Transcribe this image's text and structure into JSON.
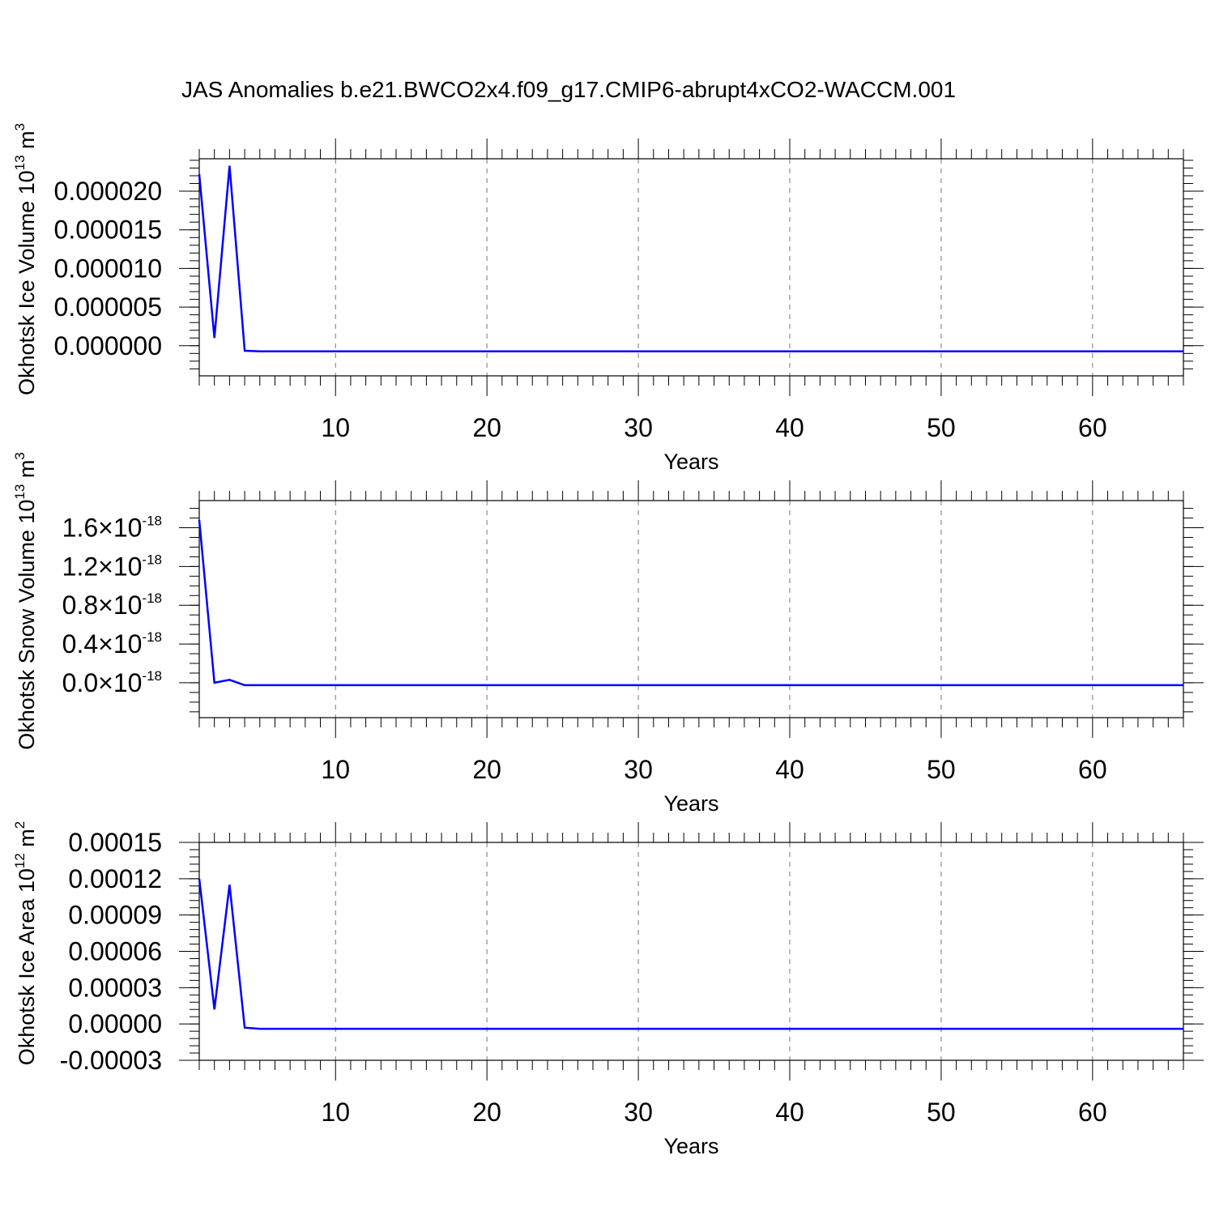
{
  "title": "JAS Anomalies b.e21.BWCO2x4.f09_g17.CMIP6-abrupt4xCO2-WACCM.001",
  "chart_data": [
    {
      "type": "line",
      "xlabel": "Years",
      "ylabel": {
        "text": "Okhotsk Ice Volume 10",
        "exp": "13",
        "unit": " m",
        "unit_exp": "3"
      },
      "xlim": [
        1,
        66
      ],
      "ylim": [
        -3.9e-06,
        2.42e-05
      ],
      "x_ticks": [
        10,
        20,
        30,
        40,
        50,
        60
      ],
      "x_tick_labels": [
        "10",
        "20",
        "30",
        "40",
        "50",
        "60"
      ],
      "y_ticks": [
        0,
        5e-06,
        1e-05,
        1.5e-05,
        2e-05
      ],
      "y_tick_labels": [
        {
          "text": "0.000000"
        },
        {
          "text": "0.000005"
        },
        {
          "text": "0.000010"
        },
        {
          "text": "0.000015"
        },
        {
          "text": "0.000020"
        }
      ],
      "y_minor_step": 1e-06,
      "grid": "x-dashed",
      "line_color": "#0000ff",
      "series": [
        {
          "x": [
            1,
            2,
            3,
            4,
            5,
            6,
            7,
            8,
            9,
            10,
            11,
            12,
            13,
            14,
            15,
            16,
            17,
            18,
            19,
            20,
            21,
            22,
            23,
            24,
            25,
            26,
            27,
            28,
            29,
            30,
            31,
            32,
            33,
            34,
            35,
            36,
            37,
            38,
            39,
            40,
            41,
            42,
            43,
            44,
            45,
            46,
            47,
            48,
            49,
            50,
            51,
            52,
            53,
            54,
            55,
            56,
            57,
            58,
            59,
            60,
            61,
            62,
            63,
            64,
            65,
            66
          ],
          "y": [
            2.22e-05,
            1e-06,
            2.33e-05,
            -6.5e-07,
            -7.2e-07,
            -7.2e-07,
            -7.2e-07,
            -7.2e-07,
            -7.2e-07,
            -7.2e-07,
            -7.2e-07,
            -7.2e-07,
            -7.2e-07,
            -7.2e-07,
            -7.2e-07,
            -7.2e-07,
            -7.2e-07,
            -7.2e-07,
            -7.2e-07,
            -7.2e-07,
            -7.2e-07,
            -7.2e-07,
            -7.2e-07,
            -7.2e-07,
            -7.2e-07,
            -7.2e-07,
            -7.2e-07,
            -7.2e-07,
            -7.2e-07,
            -7.2e-07,
            -7.2e-07,
            -7.2e-07,
            -7.2e-07,
            -7.2e-07,
            -7.2e-07,
            -7.2e-07,
            -7.2e-07,
            -7.2e-07,
            -7.2e-07,
            -7.2e-07,
            -7.2e-07,
            -7.2e-07,
            -7.2e-07,
            -7.2e-07,
            -7.2e-07,
            -7.2e-07,
            -7.2e-07,
            -7.2e-07,
            -7.2e-07,
            -7.2e-07,
            -7.2e-07,
            -7.2e-07,
            -7.2e-07,
            -7.2e-07,
            -7.2e-07,
            -7.2e-07,
            -7.2e-07,
            -7.2e-07,
            -7.2e-07,
            -7.2e-07,
            -7.2e-07,
            -7.2e-07,
            -7.2e-07,
            -7.2e-07,
            -7.2e-07,
            -7.2e-07
          ]
        }
      ]
    },
    {
      "type": "line",
      "xlabel": "Years",
      "ylabel": {
        "text": "Okhotsk Snow Volume 10",
        "exp": "13",
        "unit": " m",
        "unit_exp": "3"
      },
      "xlim": [
        1,
        66
      ],
      "ylim": [
        -3.6e-19,
        1.88e-18
      ],
      "x_ticks": [
        10,
        20,
        30,
        40,
        50,
        60
      ],
      "x_tick_labels": [
        "10",
        "20",
        "30",
        "40",
        "50",
        "60"
      ],
      "y_ticks": [
        0,
        4e-19,
        8e-19,
        1.2e-18,
        1.6e-18
      ],
      "y_tick_labels": [
        {
          "text": "0.0",
          "times": "×",
          "base": "10",
          "exp": "-18"
        },
        {
          "text": "0.4",
          "times": "×",
          "base": "10",
          "exp": "-18"
        },
        {
          "text": "0.8",
          "times": "×",
          "base": "10",
          "exp": "-18"
        },
        {
          "text": "1.2",
          "times": "×",
          "base": "10",
          "exp": "-18"
        },
        {
          "text": "1.6",
          "times": "×",
          "base": "10",
          "exp": "-18"
        }
      ],
      "y_minor_step": 1e-19,
      "grid": "x-dashed",
      "line_color": "#0000ff",
      "series": [
        {
          "x": [
            1,
            2,
            3,
            4,
            5,
            6,
            7,
            8,
            9,
            10,
            11,
            12,
            13,
            14,
            15,
            16,
            17,
            18,
            19,
            20,
            21,
            22,
            23,
            24,
            25,
            26,
            27,
            28,
            29,
            30,
            31,
            32,
            33,
            34,
            35,
            36,
            37,
            38,
            39,
            40,
            41,
            42,
            43,
            44,
            45,
            46,
            47,
            48,
            49,
            50,
            51,
            52,
            53,
            54,
            55,
            56,
            57,
            58,
            59,
            60,
            61,
            62,
            63,
            64,
            65,
            66
          ],
          "y": [
            1.68e-18,
            0,
            3e-20,
            -2.5e-20,
            -2.5e-20,
            -2.5e-20,
            -2.5e-20,
            -2.5e-20,
            -2.5e-20,
            -2.5e-20,
            -2.5e-20,
            -2.5e-20,
            -2.5e-20,
            -2.5e-20,
            -2.5e-20,
            -2.5e-20,
            -2.5e-20,
            -2.5e-20,
            -2.5e-20,
            -2.5e-20,
            -2.5e-20,
            -2.5e-20,
            -2.5e-20,
            -2.5e-20,
            -2.5e-20,
            -2.5e-20,
            -2.5e-20,
            -2.5e-20,
            -2.5e-20,
            -2.5e-20,
            -2.5e-20,
            -2.5e-20,
            -2.5e-20,
            -2.5e-20,
            -2.5e-20,
            -2.5e-20,
            -2.5e-20,
            -2.5e-20,
            -2.5e-20,
            -2.5e-20,
            -2.5e-20,
            -2.5e-20,
            -2.5e-20,
            -2.5e-20,
            -2.5e-20,
            -2.5e-20,
            -2.5e-20,
            -2.5e-20,
            -2.5e-20,
            -2.5e-20,
            -2.5e-20,
            -2.5e-20,
            -2.5e-20,
            -2.5e-20,
            -2.5e-20,
            -2.5e-20,
            -2.5e-20,
            -2.5e-20,
            -2.5e-20,
            -2.5e-20,
            -2.5e-20,
            -2.5e-20,
            -2.5e-20,
            -2.5e-20,
            -2.5e-20,
            -2.5e-20
          ]
        }
      ]
    },
    {
      "type": "line",
      "xlabel": "Years",
      "ylabel": {
        "text": "Okhotsk Ice Area 10",
        "exp": "12",
        "unit": " m",
        "unit_exp": "2"
      },
      "xlim": [
        1,
        66
      ],
      "ylim": [
        -3e-05,
        0.00015
      ],
      "x_ticks": [
        10,
        20,
        30,
        40,
        50,
        60
      ],
      "x_tick_labels": [
        "10",
        "20",
        "30",
        "40",
        "50",
        "60"
      ],
      "y_ticks": [
        -3e-05,
        0,
        3e-05,
        6e-05,
        9e-05,
        0.00012,
        0.00015
      ],
      "y_tick_labels": [
        {
          "text": "-0.00003"
        },
        {
          "text": "0.00000"
        },
        {
          "text": "0.00003"
        },
        {
          "text": "0.00006"
        },
        {
          "text": "0.00009"
        },
        {
          "text": "0.00012"
        },
        {
          "text": "0.00015"
        }
      ],
      "y_minor_step": 6e-06,
      "grid": "x-dashed",
      "line_color": "#0000ff",
      "series": [
        {
          "x": [
            1,
            2,
            3,
            4,
            5,
            6,
            7,
            8,
            9,
            10,
            11,
            12,
            13,
            14,
            15,
            16,
            17,
            18,
            19,
            20,
            21,
            22,
            23,
            24,
            25,
            26,
            27,
            28,
            29,
            30,
            31,
            32,
            33,
            34,
            35,
            36,
            37,
            38,
            39,
            40,
            41,
            42,
            43,
            44,
            45,
            46,
            47,
            48,
            49,
            50,
            51,
            52,
            53,
            54,
            55,
            56,
            57,
            58,
            59,
            60,
            61,
            62,
            63,
            64,
            65,
            66
          ],
          "y": [
            0.00012,
            1.2e-05,
            0.000115,
            -3e-06,
            -4e-06,
            -4e-06,
            -4e-06,
            -4e-06,
            -4e-06,
            -4e-06,
            -4e-06,
            -4e-06,
            -4e-06,
            -4e-06,
            -4e-06,
            -4e-06,
            -4e-06,
            -4e-06,
            -4e-06,
            -4e-06,
            -4e-06,
            -4e-06,
            -4e-06,
            -4e-06,
            -4e-06,
            -4e-06,
            -4e-06,
            -4e-06,
            -4e-06,
            -4e-06,
            -4e-06,
            -4e-06,
            -4e-06,
            -4e-06,
            -4e-06,
            -4e-06,
            -4e-06,
            -4e-06,
            -4e-06,
            -4e-06,
            -4e-06,
            -4e-06,
            -4e-06,
            -4e-06,
            -4e-06,
            -4e-06,
            -4e-06,
            -4e-06,
            -4e-06,
            -4e-06,
            -4e-06,
            -4e-06,
            -4e-06,
            -4e-06,
            -4e-06,
            -4e-06,
            -4e-06,
            -4e-06,
            -4e-06,
            -4e-06,
            -4e-06,
            -4e-06,
            -4e-06,
            -4e-06,
            -4e-06,
            -4e-06
          ]
        }
      ]
    }
  ]
}
